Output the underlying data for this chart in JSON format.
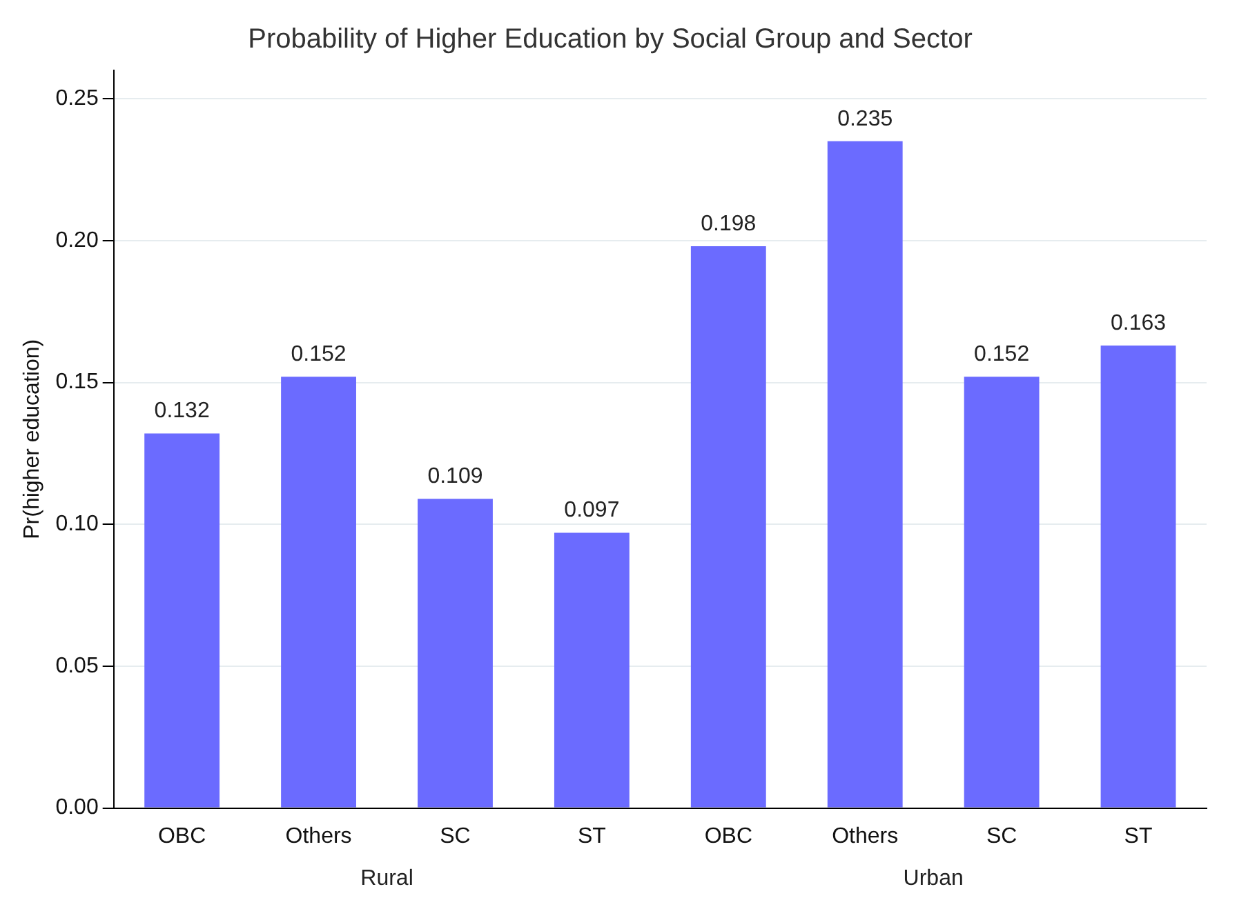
{
  "chart_data": {
    "type": "bar",
    "title": "Probability of Higher Education by Social Group and Sector",
    "ylabel": "Pr(higher education)",
    "categories": [
      "OBC",
      "Others",
      "SC",
      "ST",
      "OBC",
      "Others",
      "SC",
      "ST"
    ],
    "values": [
      0.132,
      0.152,
      0.109,
      0.097,
      0.198,
      0.235,
      0.152,
      0.163
    ],
    "color": "#6b6bff",
    "ylim": [
      0,
      0.26
    ],
    "yticks": [
      {
        "value": 0,
        "label": "0.00"
      },
      {
        "value": 0.05,
        "label": "0.05"
      },
      {
        "value": 0.1,
        "label": "0.10"
      },
      {
        "value": 0.15,
        "label": "0.15"
      },
      {
        "value": 0.2,
        "label": "0.20"
      },
      {
        "value": 0.25,
        "label": "0.25"
      }
    ],
    "grid": "y",
    "legend": false,
    "data_labels": true,
    "annotations": [
      "Rural",
      "Urban"
    ]
  }
}
